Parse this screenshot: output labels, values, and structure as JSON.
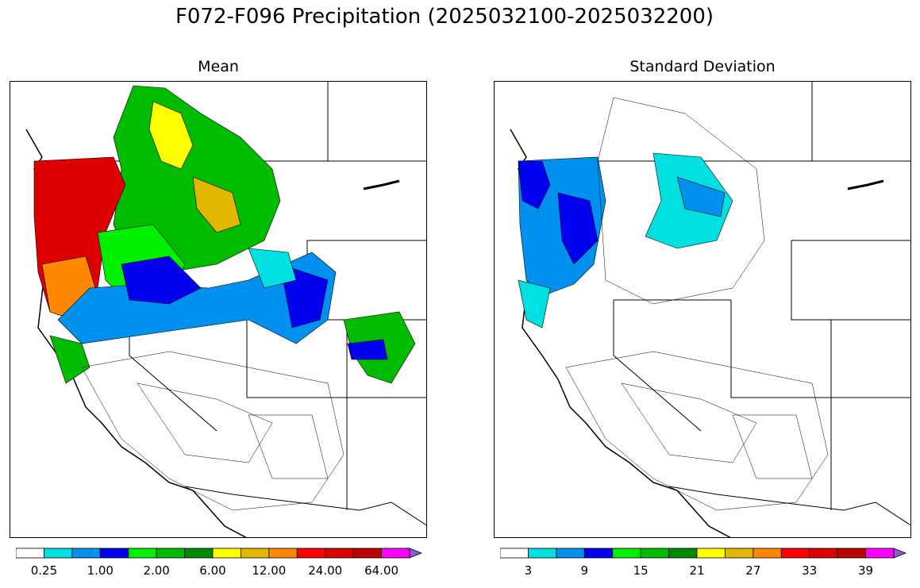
{
  "title": "F072-F096 Precipitation (2025032100-2025032200)",
  "panels": [
    {
      "subtitle": "Mean",
      "colorbar": {
        "colors": [
          "#ffffff",
          "#00e0e0",
          "#0090f0",
          "#0000f0",
          "#00f000",
          "#00bb00",
          "#008800",
          "#ffff00",
          "#e0b800",
          "#ff8800",
          "#ff0000",
          "#dd0000",
          "#bb0000",
          "#ff00ff",
          "#9955cc"
        ],
        "tick_labels": [
          "0.25",
          "1.00",
          "2.00",
          "6.00",
          "12.00",
          "24.00",
          "64.00"
        ]
      }
    },
    {
      "subtitle": "Standard Deviation",
      "colorbar": {
        "colors": [
          "#ffffff",
          "#00e0e0",
          "#0090f0",
          "#0000f0",
          "#00f000",
          "#00bb00",
          "#008800",
          "#ffff00",
          "#e0b800",
          "#ff8800",
          "#ff0000",
          "#dd0000",
          "#bb0000",
          "#ff00ff",
          "#9955cc"
        ],
        "tick_labels": [
          "3",
          "9",
          "15",
          "21",
          "27",
          "33",
          "39"
        ]
      }
    }
  ]
}
